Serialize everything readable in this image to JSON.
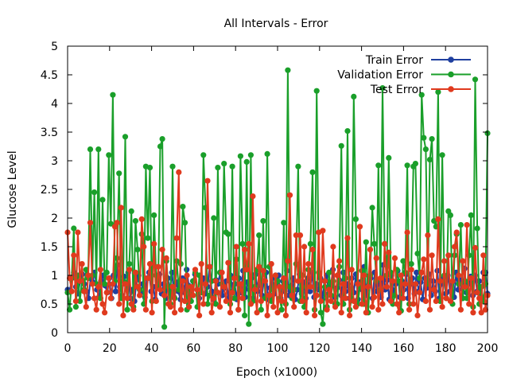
{
  "chart_data": {
    "type": "line",
    "title": "All Intervals - Error",
    "xlabel": "Epoch (x1000)",
    "ylabel": "Glucose Level",
    "xlim": [
      0,
      200
    ],
    "ylim": [
      0,
      5
    ],
    "xticks": [
      "0",
      "20",
      "40",
      "60",
      "80",
      "100",
      "120",
      "140",
      "160",
      "180",
      "200"
    ],
    "yticks": [
      "0",
      "0.5",
      "1",
      "1.5",
      "2",
      "2.5",
      "3",
      "3.5",
      "4",
      "4.5",
      "5"
    ],
    "grid": false,
    "legend_position": "top-right",
    "series": [
      {
        "name": "Train Error",
        "color": "#1f3f9f",
        "values": [
          0.75,
          0.72,
          0.95,
          1.05,
          0.8,
          0.68,
          0.9,
          1.02,
          0.85,
          0.72,
          0.6,
          0.95,
          0.88,
          1.05,
          0.75,
          0.62,
          0.9,
          1.0,
          0.82,
          0.7,
          0.95,
          0.6,
          1.0,
          0.72,
          1.18,
          0.8,
          0.65,
          0.98,
          0.85,
          1.05,
          0.6,
          0.75,
          0.55,
          0.92,
          1.0,
          0.7,
          0.85,
          0.62,
          0.95,
          1.05,
          0.72,
          0.8,
          0.58,
          0.9,
          1.02,
          0.68,
          0.85,
          0.6,
          0.95,
          0.75,
          1.05,
          0.62,
          0.88,
          0.72,
          0.58,
          0.95,
          0.7,
          1.1,
          0.82,
          0.65,
          0.9,
          1.02,
          0.75,
          0.6,
          0.88,
          0.95,
          0.68,
          0.8,
          1.15,
          0.72,
          0.58,
          0.92,
          0.85,
          1.05,
          0.65,
          0.78,
          0.9,
          0.6,
          1.0,
          0.72,
          0.85,
          0.58,
          0.95,
          0.7,
          1.08,
          0.62,
          0.88,
          0.75,
          0.95,
          0.6,
          1.02,
          0.72,
          0.85,
          0.65,
          0.9,
          1.05,
          0.58,
          0.78,
          0.95,
          0.68,
          0.85,
          1.0,
          0.6,
          0.9,
          0.72,
          1.08,
          0.65,
          0.82,
          0.95,
          0.58,
          0.75,
          1.02,
          0.68,
          0.88,
          0.6,
          0.95,
          0.72,
          1.05,
          0.62,
          0.85,
          0.75,
          0.95,
          0.58,
          0.9,
          1.0,
          0.68,
          0.82,
          1.1,
          0.62,
          0.78,
          0.92,
          0.65,
          1.05,
          0.72,
          0.85,
          0.6,
          0.95,
          0.7,
          1.02,
          0.58,
          0.88,
          0.75,
          1.15,
          0.65,
          0.82,
          0.95,
          0.6,
          1.05,
          0.72,
          0.88,
          0.62,
          1.18,
          0.75,
          0.92,
          0.58,
          1.0,
          0.7,
          0.85,
          1.08,
          0.62,
          0.9,
          0.75,
          1.02,
          0.6,
          0.85,
          0.95,
          0.68,
          1.05,
          0.72,
          0.88,
          0.58,
          0.95,
          0.78,
          1.02,
          0.65,
          0.9,
          0.72,
          1.08,
          0.6,
          0.85,
          0.95,
          0.68,
          1.0,
          0.72,
          0.88,
          0.62,
          1.05,
          0.75,
          0.92,
          0.6,
          1.12,
          0.7,
          0.85,
          0.98,
          0.65,
          1.0,
          0.72,
          0.9,
          0.62,
          1.05,
          1.05,
          0.68
        ]
      },
      {
        "name": "Validation Error",
        "color": "#1a9f2a",
        "values": [
          0.7,
          0.4,
          0.95,
          1.82,
          0.45,
          1.0,
          0.55,
          0.92,
          0.75,
          1.1,
          0.95,
          3.2,
          1.0,
          2.45,
          0.85,
          3.2,
          0.6,
          2.32,
          0.85,
          1.05,
          3.1,
          1.9,
          4.15,
          0.9,
          1.3,
          2.78,
          0.6,
          0.9,
          3.42,
          0.4,
          1.2,
          2.12,
          0.45,
          1.95,
          1.45,
          0.75,
          1.72,
          0.5,
          2.9,
          1.65,
          2.88,
          0.55,
          2.05,
          1.0,
          0.8,
          3.25,
          3.38,
          0.1,
          1.25,
          0.8,
          0.5,
          2.9,
          0.6,
          1.25,
          0.75,
          1.2,
          2.2,
          1.92,
          0.4,
          0.8,
          0.55,
          0.9,
          1.05,
          0.45,
          1.0,
          0.7,
          3.1,
          2.18,
          0.5,
          0.65,
          0.9,
          2.0,
          0.5,
          2.88,
          1.05,
          0.85,
          2.95,
          1.75,
          1.72,
          0.5,
          2.9,
          0.6,
          1.28,
          0.4,
          3.08,
          1.55,
          0.3,
          2.98,
          0.15,
          3.1,
          0.55,
          0.8,
          1.1,
          1.7,
          0.4,
          1.95,
          0.6,
          3.12,
          1.15,
          0.55,
          0.75,
          1.0,
          0.9,
          0.6,
          0.4,
          1.92,
          0.5,
          4.58,
          0.8,
          0.6,
          0.75,
          1.2,
          2.9,
          0.55,
          1.0,
          0.45,
          0.8,
          1.1,
          1.55,
          2.8,
          0.4,
          4.22,
          1.05,
          0.35,
          0.15,
          0.8,
          0.45,
          1.05,
          0.65,
          0.9,
          0.5,
          0.5,
          1.15,
          3.26,
          0.5,
          0.95,
          3.52,
          0.4,
          0.6,
          4.12,
          1.98,
          0.5,
          0.8,
          1.08,
          0.5,
          1.58,
          0.35,
          1.0,
          2.18,
          1.55,
          0.9,
          2.92,
          0.75,
          4.27,
          1.55,
          1.0,
          3.05,
          1.05,
          0.5,
          0.65,
          1.1,
          0.9,
          0.38,
          1.25,
          1.05,
          2.92,
          0.5,
          1.2,
          2.9,
          2.95,
          1.38,
          0.95,
          4.15,
          3.4,
          3.2,
          0.85,
          3.02,
          3.38,
          1.95,
          1.85,
          4.2,
          0.55,
          3.1,
          1.0,
          0.6,
          2.12,
          2.05,
          0.5,
          1.35,
          1.72,
          0.85,
          1.88,
          0.6,
          0.9,
          0.6,
          1.35,
          2.05,
          0.45,
          4.42,
          1.82,
          0.5,
          0.8,
          0.55,
          0.85,
          3.48
        ]
      },
      {
        "name": "Test Error",
        "color": "#e03a1e",
        "values": [
          1.75,
          0.95,
          0.72,
          1.35,
          0.55,
          1.75,
          0.9,
          1.2,
          0.72,
          0.45,
          1.0,
          1.92,
          0.85,
          0.6,
          0.4,
          0.8,
          1.1,
          0.5,
          0.35,
          0.7,
          0.95,
          0.6,
          0.85,
          1.85,
          1.92,
          0.5,
          2.18,
          0.3,
          0.85,
          0.6,
          1.1,
          0.5,
          0.4,
          1.05,
          0.8,
          0.65,
          1.98,
          1.5,
          0.4,
          0.95,
          1.2,
          0.35,
          1.55,
          0.55,
          1.15,
          0.75,
          1.45,
          0.65,
          1.3,
          0.5,
          0.45,
          0.8,
          0.35,
          1.65,
          2.8,
          0.4,
          0.9,
          0.55,
          1.0,
          0.45,
          0.8,
          0.65,
          1.1,
          0.75,
          0.3,
          1.2,
          0.5,
          0.85,
          2.65,
          1.15,
          0.35,
          0.6,
          0.9,
          0.7,
          0.45,
          1.05,
          0.8,
          0.55,
          1.22,
          0.35,
          0.7,
          0.95,
          1.5,
          0.4,
          0.85,
          0.6,
          1.45,
          1.1,
          1.55,
          0.5,
          2.38,
          0.75,
          0.35,
          1.15,
          0.55,
          1.08,
          0.9,
          0.3,
          0.65,
          1.2,
          0.45,
          1.0,
          0.35,
          0.8,
          0.55,
          0.95,
          0.3,
          1.25,
          2.4,
          0.65,
          0.45,
          1.7,
          0.9,
          1.7,
          0.55,
          1.5,
          0.35,
          1.2,
          0.8,
          1.45,
          0.3,
          0.65,
          1.75,
          0.55,
          1.78,
          0.9,
          0.4,
          0.75,
          0.55,
          1.5,
          0.45,
          1.0,
          1.25,
          0.35,
          0.85,
          0.6,
          1.65,
          0.3,
          1.1,
          0.55,
          0.45,
          0.85,
          1.85,
          0.5,
          1.0,
          0.35,
          0.8,
          1.45,
          0.45,
          0.62,
          1.3,
          0.4,
          0.95,
          0.5,
          1.55,
          0.8,
          1.4,
          0.55,
          0.9,
          1.3,
          0.5,
          0.35,
          1.0,
          0.6,
          0.85,
          1.75,
          0.4,
          1.1,
          0.5,
          0.85,
          0.3,
          0.7,
          1.05,
          1.28,
          0.55,
          1.7,
          0.4,
          1.35,
          0.75,
          0.55,
          1.98,
          0.9,
          0.45,
          1.25,
          0.6,
          1.35,
          0.55,
          0.9,
          1.5,
          1.75,
          1.0,
          0.4,
          1.25,
          0.8,
          1.88,
          0.5,
          0.95,
          0.35,
          1.48,
          0.7,
          0.6,
          0.35,
          1.35,
          0.4,
          0.65
        ]
      }
    ]
  }
}
